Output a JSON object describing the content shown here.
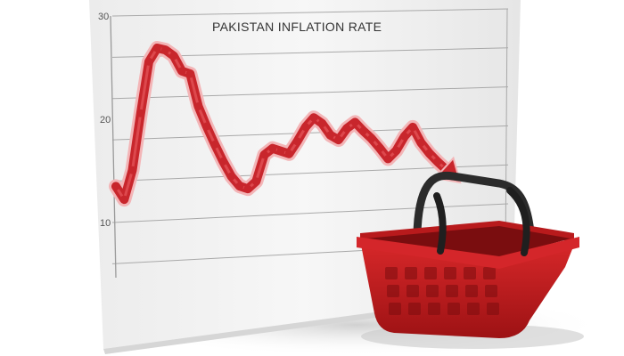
{
  "chart_data": {
    "type": "line",
    "title": "PAKISTAN INFLATION RATE",
    "xlabel": "",
    "ylabel": "",
    "ylim": [
      10,
      30
    ],
    "y_ticks": [
      10,
      20,
      30
    ],
    "grid": true,
    "legend": "none",
    "series": [
      {
        "values": [
          13.5,
          12.2,
          15.0,
          20.5,
          25.5,
          26.8,
          26.6,
          26.0,
          24.5,
          24.2,
          21.0,
          19.0,
          17.2,
          15.5,
          14.0,
          13.0,
          12.7,
          13.4,
          16.0,
          16.6,
          16.3,
          16.0,
          17.2,
          18.6,
          19.5,
          18.9,
          17.7,
          17.2,
          18.3,
          18.9,
          18.0,
          17.2,
          16.2,
          15.1,
          15.9,
          17.3,
          18.2,
          16.6,
          15.5,
          14.6,
          13.8
        ]
      }
    ],
    "trend_arrow": "down",
    "colors": {
      "line": "#c8262c",
      "line_glow": "#f3b5b7",
      "grid": "#a9a9a9",
      "board": "#f6f6f6",
      "basket": "#c51a1c",
      "basket_handle": "#2b2b2b"
    }
  }
}
